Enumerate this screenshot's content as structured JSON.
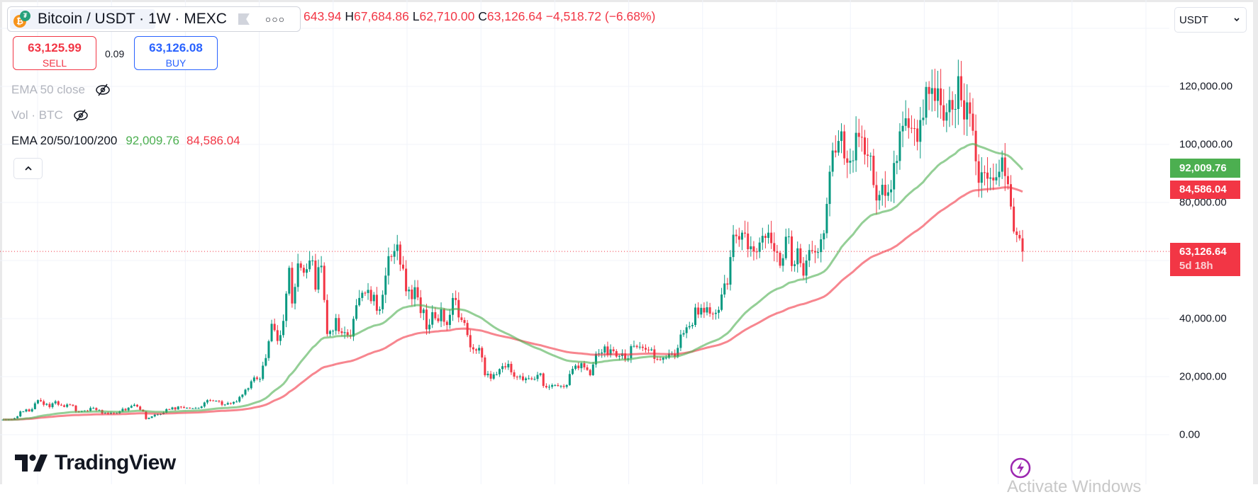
{
  "header": {
    "symbol": "Bitcoin / USDT",
    "interval": "1W",
    "exchange": "MEXC",
    "separator": "·",
    "ohlc": {
      "open_visible": "643.94",
      "high_key": "H",
      "high": "67,684.86",
      "low_key": "L",
      "low": "62,710.00",
      "close_key": "C",
      "close": "63,126.64",
      "change": "−4,518.72 (−6.68%)"
    }
  },
  "trade": {
    "sell_price": "63,125.99",
    "sell_label": "SELL",
    "spread": "0.09",
    "buy_price": "63,126.08",
    "buy_label": "BUY"
  },
  "indicators": [
    {
      "label": "EMA 50 close",
      "visible": false,
      "icon": "eye-off-icon"
    },
    {
      "label": "Vol · BTC",
      "visible": false,
      "icon": "eye-off-icon"
    },
    {
      "label": "EMA 20/50/100/200",
      "values": [
        "92,009.76",
        "84,586.04"
      ]
    }
  ],
  "currency_select": {
    "value": "USDT",
    "icon": "chevron-down-icon"
  },
  "price_axis": {
    "ticks": [
      {
        "value": 120000,
        "label": "120,000.00"
      },
      {
        "value": 100000,
        "label": "100,000.00"
      },
      {
        "value": 80000,
        "label": "80,000.00"
      },
      {
        "value": 40000,
        "label": "40,000.00"
      },
      {
        "value": 20000,
        "label": "20,000.00"
      },
      {
        "value": 0,
        "label": "0.00"
      }
    ],
    "ema_green_label": "92,009.76",
    "ema_red_label": "84,586.04",
    "current_price_label": "63,126.64",
    "countdown": "5d 18h"
  },
  "logo": "TradingView",
  "watermark": "Activate Windows",
  "colors": {
    "up": "#089981",
    "down": "#f23645",
    "ema_fast": "#4caf50",
    "ema_slow": "#f23645",
    "buy": "#2962ff",
    "grid": "#f0f3fa",
    "bolt": "#9c27b0"
  },
  "chart_data": {
    "type": "candlestick",
    "interval": "1W",
    "ylim": [
      0,
      140000
    ],
    "grid": true,
    "current_price": 63126.64,
    "ema_periods": [
      50,
      100
    ],
    "closes": [
      5200,
      5070,
      5300,
      5200,
      5700,
      6300,
      8000,
      8000,
      8700,
      8000,
      8800,
      10800,
      11900,
      11500,
      10300,
      10600,
      9500,
      10800,
      11500,
      10300,
      10100,
      9600,
      10400,
      10300,
      10000,
      8000,
      7900,
      8200,
      8300,
      8200,
      9200,
      9200,
      8500,
      8500,
      7300,
      7500,
      7100,
      7500,
      7300,
      7400,
      8000,
      8900,
      8400,
      9300,
      9900,
      10300,
      9700,
      8600,
      8000,
      5400,
      5800,
      6300,
      6900,
      7000,
      7100,
      7600,
      8800,
      8700,
      9400,
      8700,
      9700,
      9500,
      9300,
      9300,
      9100,
      9100,
      9200,
      9200,
      9700,
      11100,
      11900,
      11800,
      11700,
      11700,
      11500,
      10300,
      10400,
      10900,
      10700,
      11300,
      11400,
      13000,
      13800,
      15500,
      16000,
      18400,
      19700,
      19200,
      19200,
      23800,
      26400,
      32200,
      38200,
      36000,
      32300,
      34300,
      39200,
      48600,
      57500,
      45200,
      50900,
      59000,
      57500,
      55800,
      57000,
      60000,
      60000,
      50000,
      57700,
      58200,
      46400,
      34700,
      35700,
      35800,
      40200,
      35600,
      35000,
      35300,
      34200,
      33800,
      39900,
      44600,
      47100,
      48900,
      48800,
      49900,
      46000,
      48200,
      42700,
      43200,
      48200,
      54800,
      61500,
      61300,
      63300,
      65500,
      58600,
      57200,
      49400,
      50000,
      46700,
      50800,
      47300,
      41900,
      43100,
      36300,
      37900,
      42200,
      40100,
      39100,
      43200,
      38900,
      37800,
      41300,
      47100,
      46400,
      40400,
      39500,
      38500,
      34300,
      30100,
      29400,
      29000,
      29900,
      26600,
      20500,
      21000,
      19300,
      20800,
      20800,
      22600,
      23600,
      23200,
      24400,
      21500,
      20000,
      19800,
      20100,
      18800,
      19400,
      19400,
      19100,
      19200,
      20600,
      21100,
      16800,
      16300,
      16500,
      17100,
      17100,
      16800,
      16800,
      16500,
      17100,
      20900,
      22700,
      23800,
      22900,
      24600,
      23200,
      22300,
      20500,
      24200,
      27900,
      28000,
      28300,
      30400,
      27500,
      29400,
      28800,
      26900,
      27100,
      28000,
      25800,
      26300,
      30500,
      30600,
      30200,
      30300,
      29900,
      29300,
      29100,
      29400,
      26100,
      26000,
      25800,
      26500,
      26500,
      27900,
      27900,
      26900,
      29900,
      34500,
      35000,
      37000,
      37400,
      37800,
      43800,
      41400,
      43700,
      42100,
      43900,
      41700,
      41600,
      42000,
      43000,
      48300,
      52100,
      51700,
      61200,
      68900,
      68400,
      67200,
      69600,
      69300,
      63900,
      64900,
      63100,
      63000,
      66200,
      68500,
      67800,
      69600,
      66000,
      63200,
      62700,
      58200,
      60800,
      68200,
      68300,
      58100,
      58700,
      64200,
      59100,
      54800,
      60000,
      63600,
      63300,
      62800,
      62900,
      67300,
      69400,
      79500,
      90600,
      97900,
      97200,
      101200,
      104500,
      95200,
      93700,
      94400,
      94500,
      104000,
      102600,
      102400,
      96500,
      96100,
      96100,
      86000,
      80700,
      82600,
      86100,
      82300,
      83500,
      84500,
      93600,
      94300,
      104500,
      106400,
      109000,
      105700,
      105600,
      105500,
      100900,
      108400,
      109200,
      119800,
      117400,
      119400,
      115000,
      119300,
      113500,
      108200,
      111100,
      115300,
      112000,
      112200,
      123500,
      115200,
      108600,
      114500,
      110600,
      104700,
      94200,
      86800,
      90400,
      90300,
      88200,
      88600,
      87600,
      88700,
      90600,
      95500,
      89100,
      86300,
      78600,
      70000,
      68800,
      67645,
      63126.64
    ]
  }
}
